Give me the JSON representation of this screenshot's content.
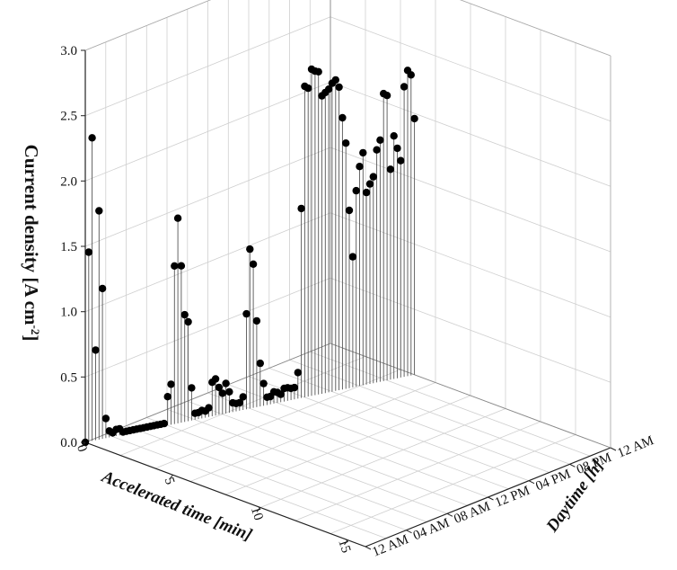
{
  "chart_data": {
    "type": "scatter",
    "variant": "3d-stem",
    "title": "",
    "xlabel": "Accelerated time [min]",
    "ylabel": "Daytime [h]",
    "zlabel": "Current density [A cm",
    "zlabel_sup": "-2",
    "zlabel_end": "]",
    "xlim": [
      0,
      16
    ],
    "ylim": [
      0,
      24
    ],
    "zlim": [
      0,
      3
    ],
    "x_ticks": [
      0,
      5,
      10,
      15
    ],
    "x_tick_labels": [
      "0",
      "5",
      "10",
      "15"
    ],
    "y_ticks": [
      0,
      4,
      8,
      12,
      16,
      20,
      24
    ],
    "y_tick_labels": [
      "12 AM",
      "04 AM",
      "08 AM",
      "12 PM",
      "04 PM",
      "08 PM",
      "12 AM"
    ],
    "z_ticks": [
      0,
      0.5,
      1.0,
      1.5,
      2.0,
      2.5,
      3.0
    ],
    "z_tick_labels": [
      "0.0",
      "0.5",
      "1.0",
      "1.5",
      "2.0",
      "2.5",
      "3.0"
    ],
    "grid": true,
    "marker_color": "#000000",
    "stem_color": "#555555",
    "points": [
      [
        0.0,
        0.0,
        0.0
      ],
      [
        0.05,
        0.25,
        1.45
      ],
      [
        0.1,
        0.5,
        2.32
      ],
      [
        0.15,
        0.75,
        0.69
      ],
      [
        0.2,
        1.0,
        1.75
      ],
      [
        0.25,
        1.25,
        1.15
      ],
      [
        0.3,
        1.5,
        0.15
      ],
      [
        0.35,
        1.75,
        0.05
      ],
      [
        0.4,
        2.0,
        0.03
      ],
      [
        0.45,
        2.25,
        0.05
      ],
      [
        0.5,
        2.5,
        0.05
      ],
      [
        0.55,
        2.75,
        0.02
      ],
      [
        0.6,
        3.0,
        0.02
      ],
      [
        0.65,
        3.25,
        0.02
      ],
      [
        0.7,
        3.5,
        0.02
      ],
      [
        0.75,
        3.75,
        0.02
      ],
      [
        0.8,
        4.0,
        0.02
      ],
      [
        0.85,
        4.25,
        0.02
      ],
      [
        0.9,
        4.5,
        0.02
      ],
      [
        0.95,
        4.75,
        0.02
      ],
      [
        1.0,
        5.0,
        0.02
      ],
      [
        1.05,
        5.25,
        0.02
      ],
      [
        1.1,
        5.5,
        0.02
      ],
      [
        1.15,
        5.75,
        0.02
      ],
      [
        1.2,
        6.0,
        0.22
      ],
      [
        1.25,
        6.25,
        0.31
      ],
      [
        1.3,
        6.5,
        1.21
      ],
      [
        1.35,
        6.75,
        1.57
      ],
      [
        1.4,
        7.0,
        1.2
      ],
      [
        1.45,
        7.25,
        0.82
      ],
      [
        1.5,
        7.5,
        0.76
      ],
      [
        1.55,
        7.75,
        0.25
      ],
      [
        1.6,
        8.0,
        0.05
      ],
      [
        1.65,
        8.25,
        0.05
      ],
      [
        1.7,
        8.5,
        0.06
      ],
      [
        1.75,
        8.75,
        0.05
      ],
      [
        1.8,
        9.0,
        0.07
      ],
      [
        1.85,
        9.25,
        0.26
      ],
      [
        1.9,
        9.5,
        0.28
      ],
      [
        1.95,
        9.75,
        0.21
      ],
      [
        2.0,
        10.0,
        0.16
      ],
      [
        2.05,
        10.25,
        0.23
      ],
      [
        2.1,
        10.5,
        0.16
      ],
      [
        2.15,
        10.75,
        0.07
      ],
      [
        2.2,
        11.0,
        0.06
      ],
      [
        2.25,
        11.25,
        0.06
      ],
      [
        2.3,
        11.5,
        0.1
      ],
      [
        2.35,
        11.75,
        0.73
      ],
      [
        2.4,
        12.0,
        1.22
      ],
      [
        2.45,
        12.25,
        1.1
      ],
      [
        2.5,
        12.5,
        0.66
      ],
      [
        2.55,
        12.75,
        0.33
      ],
      [
        2.6,
        13.0,
        0.17
      ],
      [
        2.65,
        13.25,
        0.06
      ],
      [
        2.7,
        13.5,
        0.06
      ],
      [
        2.75,
        13.75,
        0.09
      ],
      [
        2.8,
        14.0,
        0.08
      ],
      [
        2.85,
        14.25,
        0.06
      ],
      [
        2.9,
        14.5,
        0.1
      ],
      [
        2.95,
        14.75,
        0.1
      ],
      [
        3.0,
        15.0,
        0.09
      ],
      [
        3.05,
        15.25,
        0.09
      ],
      [
        3.1,
        15.5,
        0.2
      ],
      [
        3.15,
        15.75,
        1.45
      ],
      [
        3.2,
        16.0,
        2.38
      ],
      [
        3.25,
        16.25,
        2.36
      ],
      [
        3.3,
        16.5,
        2.5
      ],
      [
        3.35,
        16.75,
        2.48
      ],
      [
        3.4,
        17.0,
        2.47
      ],
      [
        3.45,
        17.25,
        2.28
      ],
      [
        3.5,
        17.5,
        2.3
      ],
      [
        3.55,
        17.75,
        2.32
      ],
      [
        3.6,
        18.0,
        2.36
      ],
      [
        3.65,
        18.25,
        2.38
      ],
      [
        3.7,
        18.5,
        2.32
      ],
      [
        3.75,
        18.75,
        2.08
      ],
      [
        3.8,
        19.0,
        1.88
      ],
      [
        3.85,
        19.25,
        1.36
      ],
      [
        3.9,
        19.5,
        1.0
      ],
      [
        3.95,
        19.75,
        1.5
      ],
      [
        4.0,
        20.0,
        1.68
      ],
      [
        4.05,
        20.25,
        1.78
      ],
      [
        4.1,
        20.5,
        1.47
      ],
      [
        4.15,
        20.75,
        1.53
      ],
      [
        4.2,
        21.0,
        1.58
      ],
      [
        4.25,
        21.25,
        1.78
      ],
      [
        4.3,
        21.5,
        1.85
      ],
      [
        4.35,
        21.75,
        2.2
      ],
      [
        4.4,
        22.0,
        2.18
      ],
      [
        4.45,
        22.25,
        1.61
      ],
      [
        4.5,
        22.5,
        1.86
      ],
      [
        4.55,
        22.75,
        1.76
      ],
      [
        4.6,
        23.0,
        1.66
      ],
      [
        4.65,
        23.25,
        2.22
      ],
      [
        4.7,
        23.5,
        2.34
      ],
      [
        4.75,
        23.75,
        2.3
      ],
      [
        4.8,
        24.0,
        1.96
      ]
    ]
  }
}
